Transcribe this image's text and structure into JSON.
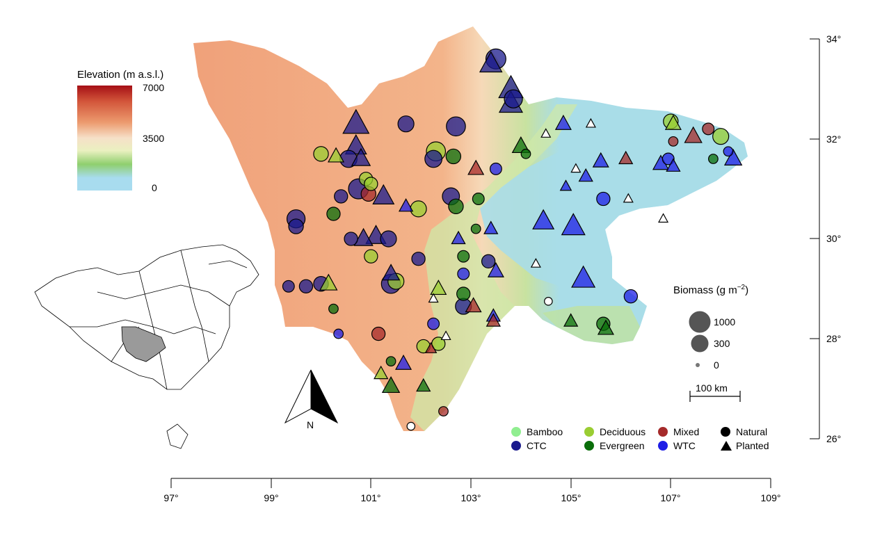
{
  "elevation_legend": {
    "title": "Elevation (m a.s.l.)",
    "ticks": [
      "7000",
      "3500",
      "0"
    ],
    "colors": [
      "#a50f15",
      "#e8825a",
      "#f6e3cf",
      "#9fd17a",
      "#a8dcef"
    ]
  },
  "biomass_legend": {
    "title": "Biomass (g m",
    "title_sup": "−2",
    "title_end": ")",
    "labels": [
      "1000",
      "300",
      "0"
    ]
  },
  "scale_bar": {
    "label": "100 km"
  },
  "north_arrow": {
    "label": "N"
  },
  "x_axis": {
    "ticks": [
      "97°",
      "99°",
      "101°",
      "103°",
      "105°",
      "107°",
      "109°"
    ]
  },
  "y_axis": {
    "ticks": [
      "34°",
      "32°",
      "30°",
      "28°",
      "26°"
    ]
  },
  "forest_types": [
    {
      "label": "Bamboo",
      "color": "#90ee90"
    },
    {
      "label": "CTC",
      "color": "#1a1a8c"
    },
    {
      "label": "Deciduous",
      "color": "#9acd32"
    },
    {
      "label": "Evergreen",
      "color": "#0a6e0a"
    },
    {
      "label": "Mixed",
      "color": "#a52a2a"
    },
    {
      "label": "WTC",
      "color": "#1e1ee6"
    }
  ],
  "origin_legend": [
    {
      "label": "Natural",
      "icon": "circle-icon"
    },
    {
      "label": "Planted",
      "icon": "triangle-icon"
    }
  ],
  "sites": [
    {
      "lon": 103.5,
      "lat": 33.6,
      "t": "CTC",
      "o": "N",
      "b": 900
    },
    {
      "lon": 103.4,
      "lat": 33.5,
      "t": "CTC",
      "o": "P",
      "b": 800
    },
    {
      "lon": 103.8,
      "lat": 33.0,
      "t": "CTC",
      "o": "P",
      "b": 1000
    },
    {
      "lon": 103.85,
      "lat": 32.8,
      "t": "CTC",
      "o": "N",
      "b": 700
    },
    {
      "lon": 103.8,
      "lat": 32.7,
      "t": "CTC",
      "o": "P",
      "b": 900
    },
    {
      "lon": 100.7,
      "lat": 32.3,
      "t": "CTC",
      "o": "P",
      "b": 1200
    },
    {
      "lon": 101.7,
      "lat": 32.3,
      "t": "CTC",
      "o": "N",
      "b": 500
    },
    {
      "lon": 102.7,
      "lat": 32.25,
      "t": "CTC",
      "o": "N",
      "b": 800
    },
    {
      "lon": 100.0,
      "lat": 31.7,
      "t": "Deciduous",
      "o": "N",
      "b": 400
    },
    {
      "lon": 100.3,
      "lat": 31.65,
      "t": "Deciduous",
      "o": "P",
      "b": 300
    },
    {
      "lon": 100.55,
      "lat": 31.6,
      "t": "CTC",
      "o": "N",
      "b": 600
    },
    {
      "lon": 100.7,
      "lat": 31.85,
      "t": "CTC",
      "o": "P",
      "b": 700
    },
    {
      "lon": 100.8,
      "lat": 31.6,
      "t": "CTC",
      "o": "P",
      "b": 500
    },
    {
      "lon": 102.3,
      "lat": 31.75,
      "t": "Deciduous",
      "o": "N",
      "b": 800
    },
    {
      "lon": 102.25,
      "lat": 31.6,
      "t": "CTC",
      "o": "N",
      "b": 600
    },
    {
      "lon": 102.65,
      "lat": 31.65,
      "t": "Evergreen",
      "o": "N",
      "b": 400
    },
    {
      "lon": 103.1,
      "lat": 31.4,
      "t": "Mixed",
      "o": "P",
      "b": 300
    },
    {
      "lon": 103.5,
      "lat": 31.4,
      "t": "WTC",
      "o": "N",
      "b": 200
    },
    {
      "lon": 104.0,
      "lat": 31.85,
      "t": "Evergreen",
      "o": "P",
      "b": 400
    },
    {
      "lon": 104.1,
      "lat": 31.7,
      "t": "Evergreen",
      "o": "N",
      "b": 100
    },
    {
      "lon": 100.9,
      "lat": 31.2,
      "t": "Deciduous",
      "o": "N",
      "b": 300
    },
    {
      "lon": 101.0,
      "lat": 31.1,
      "t": "Deciduous",
      "o": "N",
      "b": 300
    },
    {
      "lon": 100.75,
      "lat": 31.0,
      "t": "CTC",
      "o": "N",
      "b": 900
    },
    {
      "lon": 100.95,
      "lat": 30.9,
      "t": "Mixed",
      "o": "N",
      "b": 400
    },
    {
      "lon": 100.4,
      "lat": 30.85,
      "t": "CTC",
      "o": "N",
      "b": 300
    },
    {
      "lon": 101.25,
      "lat": 30.85,
      "t": "CTC",
      "o": "P",
      "b": 700
    },
    {
      "lon": 101.7,
      "lat": 30.65,
      "t": "WTC",
      "o": "P",
      "b": 200
    },
    {
      "lon": 101.95,
      "lat": 30.6,
      "t": "Deciduous",
      "o": "N",
      "b": 500
    },
    {
      "lon": 102.6,
      "lat": 30.85,
      "t": "CTC",
      "o": "N",
      "b": 600
    },
    {
      "lon": 102.7,
      "lat": 30.65,
      "t": "Evergreen",
      "o": "N",
      "b": 400
    },
    {
      "lon": 103.15,
      "lat": 30.8,
      "t": "Evergreen",
      "o": "N",
      "b": 200
    },
    {
      "lon": 99.5,
      "lat": 30.4,
      "t": "CTC",
      "o": "N",
      "b": 700
    },
    {
      "lon": 99.5,
      "lat": 30.25,
      "t": "CTC",
      "o": "N",
      "b": 400
    },
    {
      "lon": 100.25,
      "lat": 30.5,
      "t": "Evergreen",
      "o": "N",
      "b": 300
    },
    {
      "lon": 100.85,
      "lat": 30.0,
      "t": "CTC",
      "o": "P",
      "b": 500
    },
    {
      "lon": 101.1,
      "lat": 30.05,
      "t": "CTC",
      "o": "P",
      "b": 600
    },
    {
      "lon": 101.35,
      "lat": 30.0,
      "t": "CTC",
      "o": "N",
      "b": 500
    },
    {
      "lon": 100.6,
      "lat": 30.0,
      "t": "CTC",
      "o": "N",
      "b": 300
    },
    {
      "lon": 103.1,
      "lat": 30.2,
      "t": "Evergreen",
      "o": "N",
      "b": 100
    },
    {
      "lon": 103.4,
      "lat": 30.2,
      "t": "WTC",
      "o": "P",
      "b": 200
    },
    {
      "lon": 102.75,
      "lat": 30.0,
      "t": "WTC",
      "o": "P",
      "b": 200
    },
    {
      "lon": 104.45,
      "lat": 30.35,
      "t": "WTC",
      "o": "P",
      "b": 700
    },
    {
      "lon": 105.05,
      "lat": 30.25,
      "t": "WTC",
      "o": "P",
      "b": 900
    },
    {
      "lon": 105.65,
      "lat": 30.8,
      "t": "WTC",
      "o": "N",
      "b": 300
    },
    {
      "lon": 106.15,
      "lat": 30.8,
      "t": "WTC",
      "o": "P",
      "b": 50
    },
    {
      "lon": 106.85,
      "lat": 30.4,
      "t": "WTC",
      "o": "P",
      "b": 50
    },
    {
      "lon": 101.0,
      "lat": 29.65,
      "t": "Deciduous",
      "o": "N",
      "b": 300
    },
    {
      "lon": 101.95,
      "lat": 29.6,
      "t": "CTC",
      "o": "N",
      "b": 300
    },
    {
      "lon": 102.85,
      "lat": 29.65,
      "t": "Evergreen",
      "o": "N",
      "b": 200
    },
    {
      "lon": 103.35,
      "lat": 29.55,
      "t": "CTC",
      "o": "N",
      "b": 300
    },
    {
      "lon": 103.5,
      "lat": 29.35,
      "t": "WTC",
      "o": "P",
      "b": 300
    },
    {
      "lon": 102.85,
      "lat": 29.3,
      "t": "WTC",
      "o": "N",
      "b": 200
    },
    {
      "lon": 105.25,
      "lat": 29.2,
      "t": "WTC",
      "o": "P",
      "b": 900
    },
    {
      "lon": 101.4,
      "lat": 29.1,
      "t": "CTC",
      "o": "N",
      "b": 800
    },
    {
      "lon": 101.5,
      "lat": 29.15,
      "t": "Deciduous",
      "o": "N",
      "b": 500
    },
    {
      "lon": 101.4,
      "lat": 29.3,
      "t": "CTC",
      "o": "P",
      "b": 400
    },
    {
      "lon": 99.35,
      "lat": 29.05,
      "t": "CTC",
      "o": "N",
      "b": 200
    },
    {
      "lon": 99.7,
      "lat": 29.05,
      "t": "CTC",
      "o": "N",
      "b": 300
    },
    {
      "lon": 100.0,
      "lat": 29.1,
      "t": "CTC",
      "o": "N",
      "b": 400
    },
    {
      "lon": 100.15,
      "lat": 29.1,
      "t": "Deciduous",
      "o": "P",
      "b": 400
    },
    {
      "lon": 102.35,
      "lat": 29.0,
      "t": "Deciduous",
      "o": "P",
      "b": 300
    },
    {
      "lon": 102.85,
      "lat": 28.9,
      "t": "Evergreen",
      "o": "N",
      "b": 300
    },
    {
      "lon": 102.25,
      "lat": 28.8,
      "t": "WTC",
      "o": "P",
      "b": 50
    },
    {
      "lon": 102.85,
      "lat": 28.65,
      "t": "CTC",
      "o": "N",
      "b": 500
    },
    {
      "lon": 103.05,
      "lat": 28.65,
      "t": "Mixed",
      "o": "P",
      "b": 300
    },
    {
      "lon": 103.45,
      "lat": 28.45,
      "t": "WTC",
      "o": "P",
      "b": 200
    },
    {
      "lon": 103.45,
      "lat": 28.35,
      "t": "Mixed",
      "o": "P",
      "b": 200
    },
    {
      "lon": 100.25,
      "lat": 28.6,
      "t": "Evergreen",
      "o": "N",
      "b": 100
    },
    {
      "lon": 100.35,
      "lat": 28.1,
      "t": "WTC",
      "o": "N",
      "b": 100
    },
    {
      "lon": 101.15,
      "lat": 28.1,
      "t": "Mixed",
      "o": "N",
      "b": 300
    },
    {
      "lon": 102.25,
      "lat": 28.3,
      "t": "WTC",
      "o": "N",
      "b": 200
    },
    {
      "lon": 102.5,
      "lat": 28.05,
      "t": "Evergreen",
      "o": "P",
      "b": 50
    },
    {
      "lon": 102.05,
      "lat": 27.85,
      "t": "Deciduous",
      "o": "N",
      "b": 300
    },
    {
      "lon": 102.35,
      "lat": 27.9,
      "t": "Deciduous",
      "o": "N",
      "b": 300
    },
    {
      "lon": 102.2,
      "lat": 27.8,
      "t": "Mixed",
      "o": "P",
      "b": 100
    },
    {
      "lon": 101.65,
      "lat": 27.5,
      "t": "WTC",
      "o": "P",
      "b": 300
    },
    {
      "lon": 101.4,
      "lat": 27.55,
      "t": "Evergreen",
      "o": "N",
      "b": 100
    },
    {
      "lon": 101.2,
      "lat": 27.3,
      "t": "Deciduous",
      "o": "P",
      "b": 200
    },
    {
      "lon": 101.4,
      "lat": 27.05,
      "t": "Evergreen",
      "o": "P",
      "b": 400
    },
    {
      "lon": 102.05,
      "lat": 27.05,
      "t": "Evergreen",
      "o": "P",
      "b": 200
    },
    {
      "lon": 102.45,
      "lat": 26.55,
      "t": "Mixed",
      "o": "N",
      "b": 100
    },
    {
      "lon": 101.8,
      "lat": 26.25,
      "t": "Evergreen",
      "o": "N",
      "b": 50
    },
    {
      "lon": 104.5,
      "lat": 32.1,
      "t": "WTC",
      "o": "P",
      "b": 50
    },
    {
      "lon": 104.85,
      "lat": 32.3,
      "t": "WTC",
      "o": "P",
      "b": 300
    },
    {
      "lon": 105.4,
      "lat": 32.3,
      "t": "WTC",
      "o": "P",
      "b": 50
    },
    {
      "lon": 107.0,
      "lat": 32.35,
      "t": "Deciduous",
      "o": "N",
      "b": 400
    },
    {
      "lon": 107.05,
      "lat": 32.3,
      "t": "Deciduous",
      "o": "P",
      "b": 300
    },
    {
      "lon": 107.45,
      "lat": 32.05,
      "t": "Mixed",
      "o": "P",
      "b": 400
    },
    {
      "lon": 107.75,
      "lat": 32.2,
      "t": "Mixed",
      "o": "N",
      "b": 200
    },
    {
      "lon": 108.0,
      "lat": 32.05,
      "t": "Deciduous",
      "o": "N",
      "b": 500
    },
    {
      "lon": 108.15,
      "lat": 31.75,
      "t": "WTC",
      "o": "N",
      "b": 100
    },
    {
      "lon": 108.25,
      "lat": 31.6,
      "t": "WTC",
      "o": "P",
      "b": 400
    },
    {
      "lon": 107.05,
      "lat": 31.95,
      "t": "Mixed",
      "o": "N",
      "b": 100
    },
    {
      "lon": 106.95,
      "lat": 31.6,
      "t": "WTC",
      "o": "N",
      "b": 200
    },
    {
      "lon": 106.8,
      "lat": 31.5,
      "t": "WTC",
      "o": "P",
      "b": 300
    },
    {
      "lon": 107.05,
      "lat": 31.45,
      "t": "WTC",
      "o": "P",
      "b": 200
    },
    {
      "lon": 107.85,
      "lat": 31.6,
      "t": "Evergreen",
      "o": "N",
      "b": 100
    },
    {
      "lon": 105.6,
      "lat": 31.55,
      "t": "WTC",
      "o": "P",
      "b": 300
    },
    {
      "lon": 106.1,
      "lat": 31.6,
      "t": "Mixed",
      "o": "P",
      "b": 200
    },
    {
      "lon": 105.3,
      "lat": 31.25,
      "t": "WTC",
      "o": "P",
      "b": 200
    },
    {
      "lon": 105.1,
      "lat": 31.4,
      "t": "WTC",
      "o": "P",
      "b": 50
    },
    {
      "lon": 104.9,
      "lat": 31.05,
      "t": "WTC",
      "o": "P",
      "b": 100
    },
    {
      "lon": 105.65,
      "lat": 28.3,
      "t": "Evergreen",
      "o": "N",
      "b": 300
    },
    {
      "lon": 105.7,
      "lat": 28.2,
      "t": "Evergreen",
      "o": "P",
      "b": 300
    },
    {
      "lon": 105.0,
      "lat": 28.35,
      "t": "Evergreen",
      "o": "P",
      "b": 200
    },
    {
      "lon": 106.2,
      "lat": 28.85,
      "t": "WTC",
      "o": "N",
      "b": 300
    },
    {
      "lon": 104.55,
      "lat": 28.75,
      "t": "WTC",
      "o": "N",
      "b": 50
    },
    {
      "lon": 104.3,
      "lat": 29.5,
      "t": "WTC",
      "o": "P",
      "b": 50
    }
  ]
}
